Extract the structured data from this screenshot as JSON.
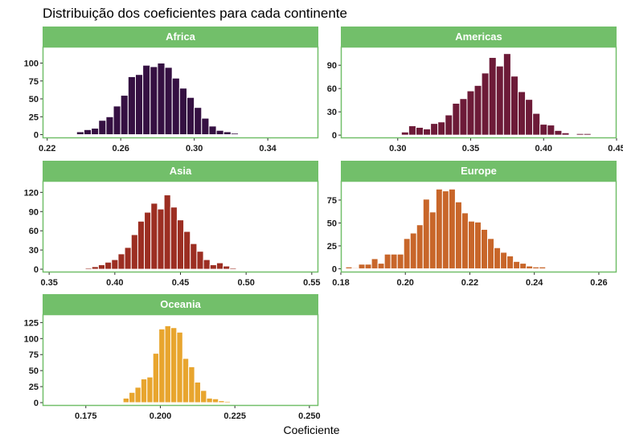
{
  "title": "Distribuição dos coeficientes para cada continente",
  "xlabel": "Coeficiente",
  "colors": {
    "strip": "#72bf6a",
    "panel_border": "#72bf6a",
    "Africa": "#351042",
    "Americas": "#6d1b38",
    "Asia": "#9c2e22",
    "Europe": "#c8662a",
    "Oceania": "#e8a52e"
  },
  "chart_data": [
    {
      "type": "bar",
      "title": "Africa",
      "xlim": [
        0.2175,
        0.3675
      ],
      "ylim": [
        -5,
        123
      ],
      "xticks": [
        0.22,
        0.26,
        0.3,
        0.34
      ],
      "xticklabels": [
        "0.22",
        "0.26",
        "0.30",
        "0.34"
      ],
      "yticks": [
        0,
        25,
        50,
        75,
        100
      ],
      "bin_start": 0.22,
      "bin_width": 0.004,
      "values": [
        1,
        1,
        0,
        1,
        4,
        7,
        9,
        20,
        25,
        40,
        55,
        81,
        84,
        97,
        95,
        100,
        94,
        79,
        65,
        52,
        38,
        23,
        12,
        6,
        4,
        2,
        0,
        0
      ]
    },
    {
      "type": "bar",
      "title": "Americas",
      "xlim": [
        0.261,
        0.45
      ],
      "ylim": [
        -4,
        114
      ],
      "xticks": [
        0.3,
        0.35,
        0.4,
        0.45
      ],
      "xticklabels": [
        "0.30",
        "0.35",
        "0.40",
        "0.45"
      ],
      "yticks": [
        0,
        30,
        60,
        90
      ],
      "bin_start": 0.2975,
      "bin_width": 0.005,
      "values": [
        1,
        4,
        12,
        10,
        8,
        15,
        17,
        26,
        41,
        47,
        57,
        64,
        80,
        100,
        89,
        105,
        76,
        56,
        46,
        28,
        14,
        13,
        6,
        3,
        1,
        2,
        2
      ]
    },
    {
      "type": "bar",
      "title": "Asia",
      "xlim": [
        0.345,
        0.555
      ],
      "ylim": [
        -5,
        138
      ],
      "xticks": [
        0.35,
        0.4,
        0.45,
        0.5,
        0.55
      ],
      "xticklabels": [
        "0.35",
        "0.40",
        "0.45",
        "0.50",
        "0.55"
      ],
      "yticks": [
        0,
        30,
        60,
        90,
        120
      ],
      "bin_start": 0.3775,
      "bin_width": 0.005,
      "values": [
        2,
        4,
        7,
        11,
        15,
        24,
        34,
        54,
        75,
        89,
        103,
        94,
        116,
        97,
        77,
        59,
        40,
        28,
        15,
        7,
        10,
        5,
        2
      ]
    },
    {
      "type": "bar",
      "title": "Europe",
      "xlim": [
        0.18,
        0.2655
      ],
      "ylim": [
        -4,
        96
      ],
      "xticks": [
        0.18,
        0.2,
        0.22,
        0.24,
        0.26
      ],
      "xticklabels": [
        "0.18",
        "0.20",
        "0.22",
        "0.24",
        "0.26"
      ],
      "yticks": [
        0,
        25,
        50,
        75
      ],
      "bin_start": 0.1815,
      "bin_width": 0.002,
      "values": [
        2,
        1,
        5,
        5,
        11,
        6,
        16,
        16,
        16,
        33,
        39,
        48,
        76,
        62,
        87,
        85,
        87,
        73,
        61,
        52,
        51,
        43,
        33,
        23,
        18,
        14,
        8,
        6,
        3,
        2,
        2
      ]
    },
    {
      "type": "bar",
      "title": "Oceania",
      "xlim": [
        0.1605,
        0.253
      ],
      "ylim": [
        -5,
        138
      ],
      "xticks": [
        0.175,
        0.2,
        0.225,
        0.25
      ],
      "xticklabels": [
        "0.175",
        "0.200",
        "0.225",
        "0.250"
      ],
      "yticks": [
        0,
        25,
        50,
        75,
        100,
        125
      ],
      "bin_start": 0.1835,
      "bin_width": 0.002,
      "values": [
        1,
        0,
        7,
        16,
        24,
        37,
        40,
        77,
        115,
        120,
        117,
        110,
        69,
        56,
        32,
        19,
        7,
        6,
        3,
        2,
        1
      ]
    }
  ]
}
